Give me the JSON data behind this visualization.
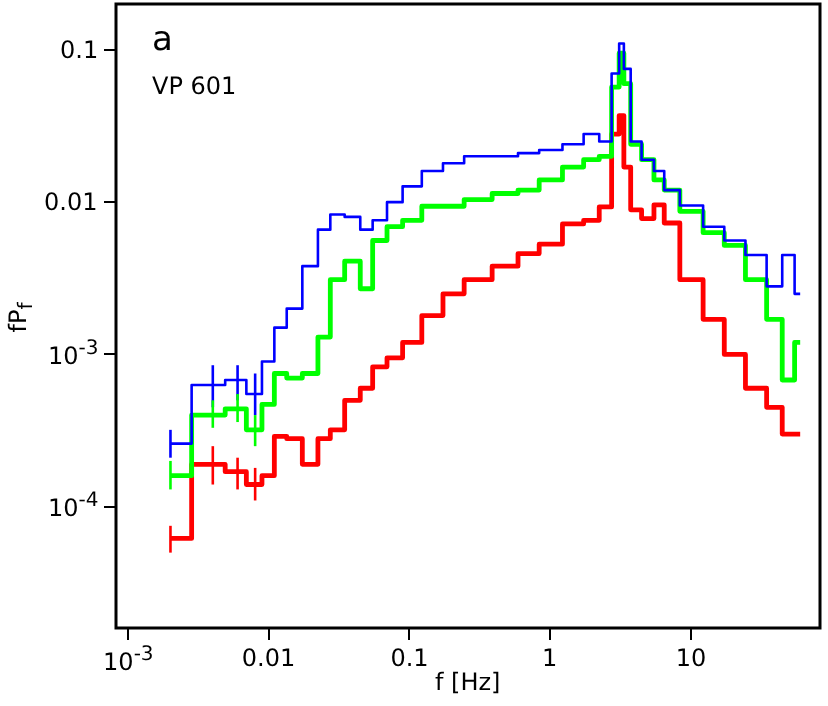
{
  "chart_data": {
    "type": "step",
    "title": "a",
    "xlabel": "f [Hz]",
    "ylabel": "fP$_{f}$",
    "annotations": [
      "VP 601"
    ],
    "log": "xy",
    "grid": false,
    "legend": false,
    "xlim": [
      0.00082,
      83
    ],
    "ylim": [
      1.6e-05,
      0.2
    ],
    "xticks": [
      {
        "value": 0.001,
        "label": "10$^{-3}$"
      },
      0.01,
      0.1,
      1,
      10
    ],
    "yticks": [
      {
        "value": 0.0001,
        "label": "10$^{-4}$"
      },
      {
        "value": 0.001,
        "label": "10$^{-3}$"
      },
      0.01,
      0.1
    ],
    "x": [
      0.002,
      0.004,
      0.006,
      0.008,
      0.01,
      0.012,
      0.015,
      0.02,
      0.025,
      0.03,
      0.04,
      0.05,
      0.06,
      0.08,
      0.1,
      0.15,
      0.2,
      0.3,
      0.5,
      0.7,
      1,
      1.5,
      2,
      2.5,
      3,
      3.2,
      3.5,
      4,
      5,
      6,
      7,
      10,
      15,
      20,
      30,
      40,
      50,
      60
    ],
    "series": [
      {
        "color": "#0000ff",
        "values": [
          0.00026,
          0.00063,
          0.00068,
          0.00055,
          0.0009,
          0.0015,
          0.002,
          0.0038,
          0.0066,
          0.0083,
          0.008,
          0.0066,
          0.0076,
          0.01,
          0.0127,
          0.016,
          0.018,
          0.02,
          0.02,
          0.021,
          0.022,
          0.024,
          0.028,
          0.025,
          0.07,
          0.11,
          0.075,
          0.025,
          0.019,
          0.016,
          0.012,
          0.0095,
          0.0069,
          0.0056,
          0.0045,
          0.0028,
          0.0045,
          0.0025
        ],
        "errors": [
          [
            0.00021,
            0.00032
          ],
          [
            0.00045,
            0.00085
          ],
          [
            0.0005,
            0.00085
          ],
          [
            0.0004,
            0.00075
          ],
          null,
          null,
          null,
          null,
          null,
          null,
          null,
          null,
          null,
          null,
          null,
          null,
          null,
          null,
          null,
          null,
          null,
          null,
          null,
          null,
          null,
          null,
          null,
          null,
          null,
          null,
          null,
          null,
          null,
          null,
          null,
          null,
          null,
          null
        ]
      },
      {
        "color": "#00ff00",
        "values": [
          0.00016,
          0.0004,
          0.00044,
          0.00032,
          0.00047,
          0.00075,
          0.0007,
          0.00075,
          0.0013,
          0.0031,
          0.0041,
          0.0027,
          0.0056,
          0.0069,
          0.0076,
          0.0094,
          0.0094,
          0.0104,
          0.0114,
          0.012,
          0.014,
          0.017,
          0.019,
          0.02,
          0.057,
          0.095,
          0.06,
          0.024,
          0.019,
          0.014,
          0.012,
          0.0087,
          0.0063,
          0.0052,
          0.0031,
          0.0017,
          0.00068,
          0.0012
        ],
        "errors": [
          [
            0.00013,
            0.0002
          ],
          [
            0.00033,
            0.0005
          ],
          [
            0.00036,
            0.00055
          ],
          [
            0.00025,
            0.0004
          ],
          null,
          null,
          null,
          null,
          null,
          null,
          null,
          null,
          null,
          null,
          null,
          null,
          null,
          null,
          null,
          null,
          null,
          null,
          null,
          null,
          null,
          null,
          null,
          null,
          null,
          null,
          null,
          null,
          null,
          null,
          null,
          null,
          null,
          null
        ]
      },
      {
        "color": "#ff0000",
        "values": [
          6.2e-05,
          0.00019,
          0.00017,
          0.00014,
          0.00016,
          0.00029,
          0.00028,
          0.00019,
          0.00028,
          0.00032,
          0.0005,
          0.0006,
          0.00083,
          0.00095,
          0.0012,
          0.0018,
          0.0025,
          0.0031,
          0.0038,
          0.0046,
          0.0053,
          0.0072,
          0.0076,
          0.0093,
          0.028,
          0.037,
          0.017,
          0.0089,
          0.0078,
          0.0096,
          0.0073,
          0.0031,
          0.0017,
          0.001,
          0.0006,
          0.00045,
          0.0003,
          0.0003
        ],
        "errors": [
          [
            5e-05,
            7.5e-05
          ],
          [
            0.00014,
            0.00025
          ],
          [
            0.00013,
            0.00021
          ],
          [
            0.00011,
            0.00018
          ],
          null,
          null,
          null,
          null,
          null,
          null,
          null,
          null,
          null,
          null,
          null,
          null,
          null,
          null,
          null,
          null,
          null,
          null,
          null,
          null,
          null,
          null,
          null,
          null,
          null,
          null,
          null,
          null,
          null,
          null,
          null,
          null,
          null,
          null
        ]
      }
    ]
  }
}
